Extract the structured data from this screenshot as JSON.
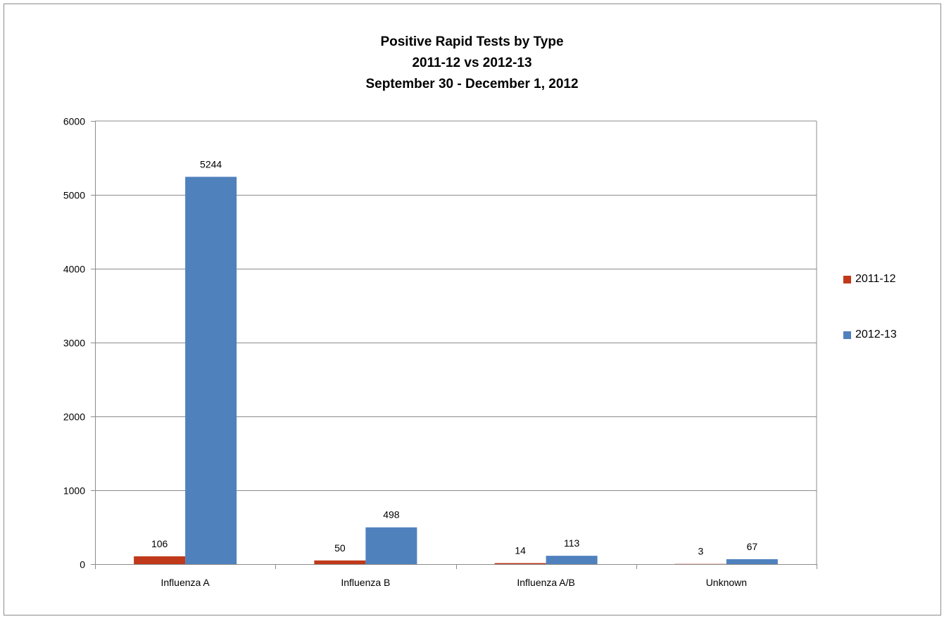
{
  "chart_data": {
    "type": "bar",
    "title": [
      "Positive Rapid Tests by Type",
      "2011-12 vs 2012-13",
      "September 30 - December 1, 2012"
    ],
    "xlabel": "",
    "ylabel": "",
    "categories": [
      "Influenza A",
      "Influenza B",
      "Influenza A/B",
      "Unknown"
    ],
    "series": [
      {
        "name": "2011-12",
        "color": "#C0391B",
        "values": [
          106,
          50,
          14,
          3
        ],
        "labels": [
          "106",
          "50",
          "14",
          "3"
        ]
      },
      {
        "name": "2012-13",
        "color": "#4F81BD",
        "values": [
          5244,
          498,
          113,
          67
        ],
        "labels": [
          "5244",
          "498",
          "113",
          "67"
        ]
      }
    ],
    "ylim": [
      0,
      6000
    ],
    "yticks": [
      "0",
      "1000",
      "2000",
      "3000",
      "4000",
      "5000",
      "6000"
    ],
    "grid": true,
    "legend_position": "right"
  }
}
